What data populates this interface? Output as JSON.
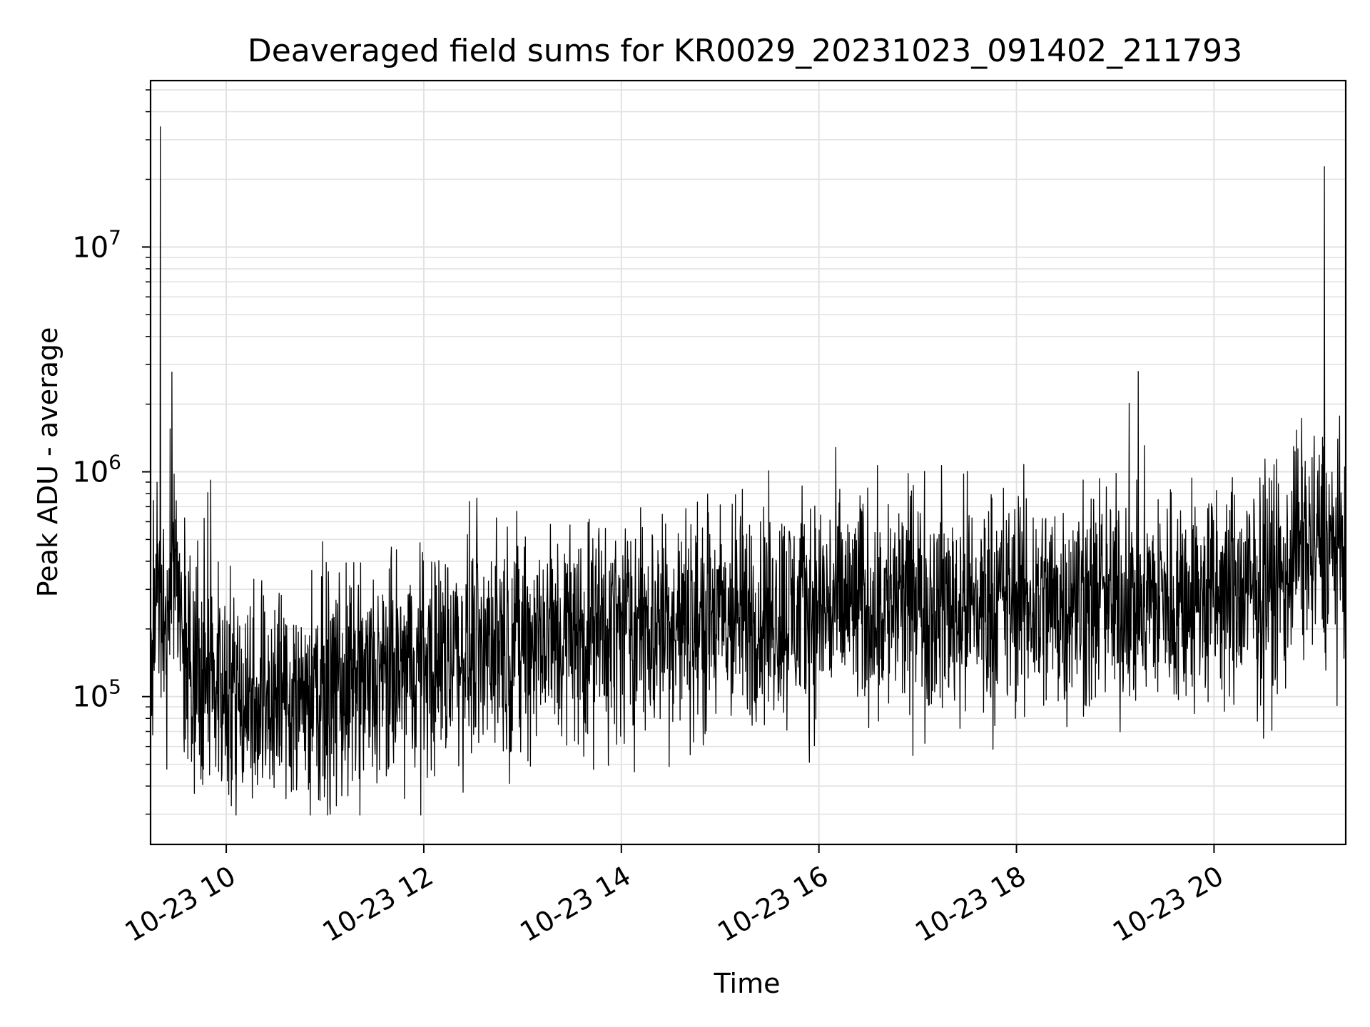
{
  "chart_data": {
    "type": "line",
    "title": "Deaveraged field sums for KR0029_20231023_091402_211793",
    "xlabel": "Time",
    "ylabel": "Peak ADU - average",
    "x_type": "datetime",
    "x_start": "2023-10-23T09:14:02",
    "x_end": "2023-10-23T21:20:00",
    "xlim": [
      "2023-10-23T09:14:02",
      "2023-10-23T21:20:00"
    ],
    "x_ticks": [
      {
        "value": "2023-10-23T10:00",
        "label": "10-23 10"
      },
      {
        "value": "2023-10-23T12:00",
        "label": "10-23 12"
      },
      {
        "value": "2023-10-23T14:00",
        "label": "10-23 14"
      },
      {
        "value": "2023-10-23T16:00",
        "label": "10-23 16"
      },
      {
        "value": "2023-10-23T18:00",
        "label": "10-23 18"
      },
      {
        "value": "2023-10-23T20:00",
        "label": "10-23 20"
      }
    ],
    "y_scale": "log",
    "ylim": [
      22000,
      55000000
    ],
    "y_ticks": [
      {
        "value": 100000,
        "base": "10",
        "exp": "5"
      },
      {
        "value": 1000000,
        "base": "10",
        "exp": "6"
      },
      {
        "value": 10000000,
        "base": "10",
        "exp": "7"
      }
    ],
    "grid": true,
    "legend": "none",
    "line_color": "#000000",
    "series": [
      {
        "points": [
          [
            "2023-10-23T09:14",
            60000
          ],
          [
            "2023-10-23T09:16",
            450000
          ],
          [
            "2023-10-23T09:18",
            900000
          ],
          [
            "2023-10-23T09:20",
            36000000
          ],
          [
            "2023-10-23T09:22",
            300000
          ],
          [
            "2023-10-23T09:24",
            120000
          ],
          [
            "2023-10-23T09:27",
            2800000
          ],
          [
            "2023-10-23T09:30",
            350000
          ],
          [
            "2023-10-23T09:35",
            180000
          ],
          [
            "2023-10-23T09:45",
            140000
          ],
          [
            "2023-10-23T10:00",
            110000
          ],
          [
            "2023-10-23T10:30",
            100000
          ],
          [
            "2023-10-23T11:00",
            105000
          ],
          [
            "2023-10-23T11:30",
            110000
          ],
          [
            "2023-10-23T12:00",
            140000
          ],
          [
            "2023-10-23T12:30",
            170000
          ],
          [
            "2023-10-23T13:00",
            180000
          ],
          [
            "2023-10-23T13:30",
            190000
          ],
          [
            "2023-10-23T14:00",
            200000
          ],
          [
            "2023-10-23T14:30",
            210000
          ],
          [
            "2023-10-23T15:00",
            220000
          ],
          [
            "2023-10-23T15:30",
            235000
          ],
          [
            "2023-10-23T16:00",
            250000
          ],
          [
            "2023-10-23T16:30",
            255000
          ],
          [
            "2023-10-23T17:00",
            260000
          ],
          [
            "2023-10-23T17:30",
            255000
          ],
          [
            "2023-10-23T18:00",
            260000
          ],
          [
            "2023-10-23T18:30",
            265000
          ],
          [
            "2023-10-23T19:00",
            265000
          ],
          [
            "2023-10-23T19:30",
            270000
          ],
          [
            "2023-10-23T20:00",
            275000
          ],
          [
            "2023-10-23T20:30",
            290000
          ],
          [
            "2023-10-23T20:50",
            1550000
          ],
          [
            "2023-10-23T21:00",
            380000
          ],
          [
            "2023-10-23T21:07",
            23000000
          ],
          [
            "2023-10-23T21:15",
            420000
          ],
          [
            "2023-10-23T21:20",
            380000
          ]
        ]
      }
    ]
  }
}
